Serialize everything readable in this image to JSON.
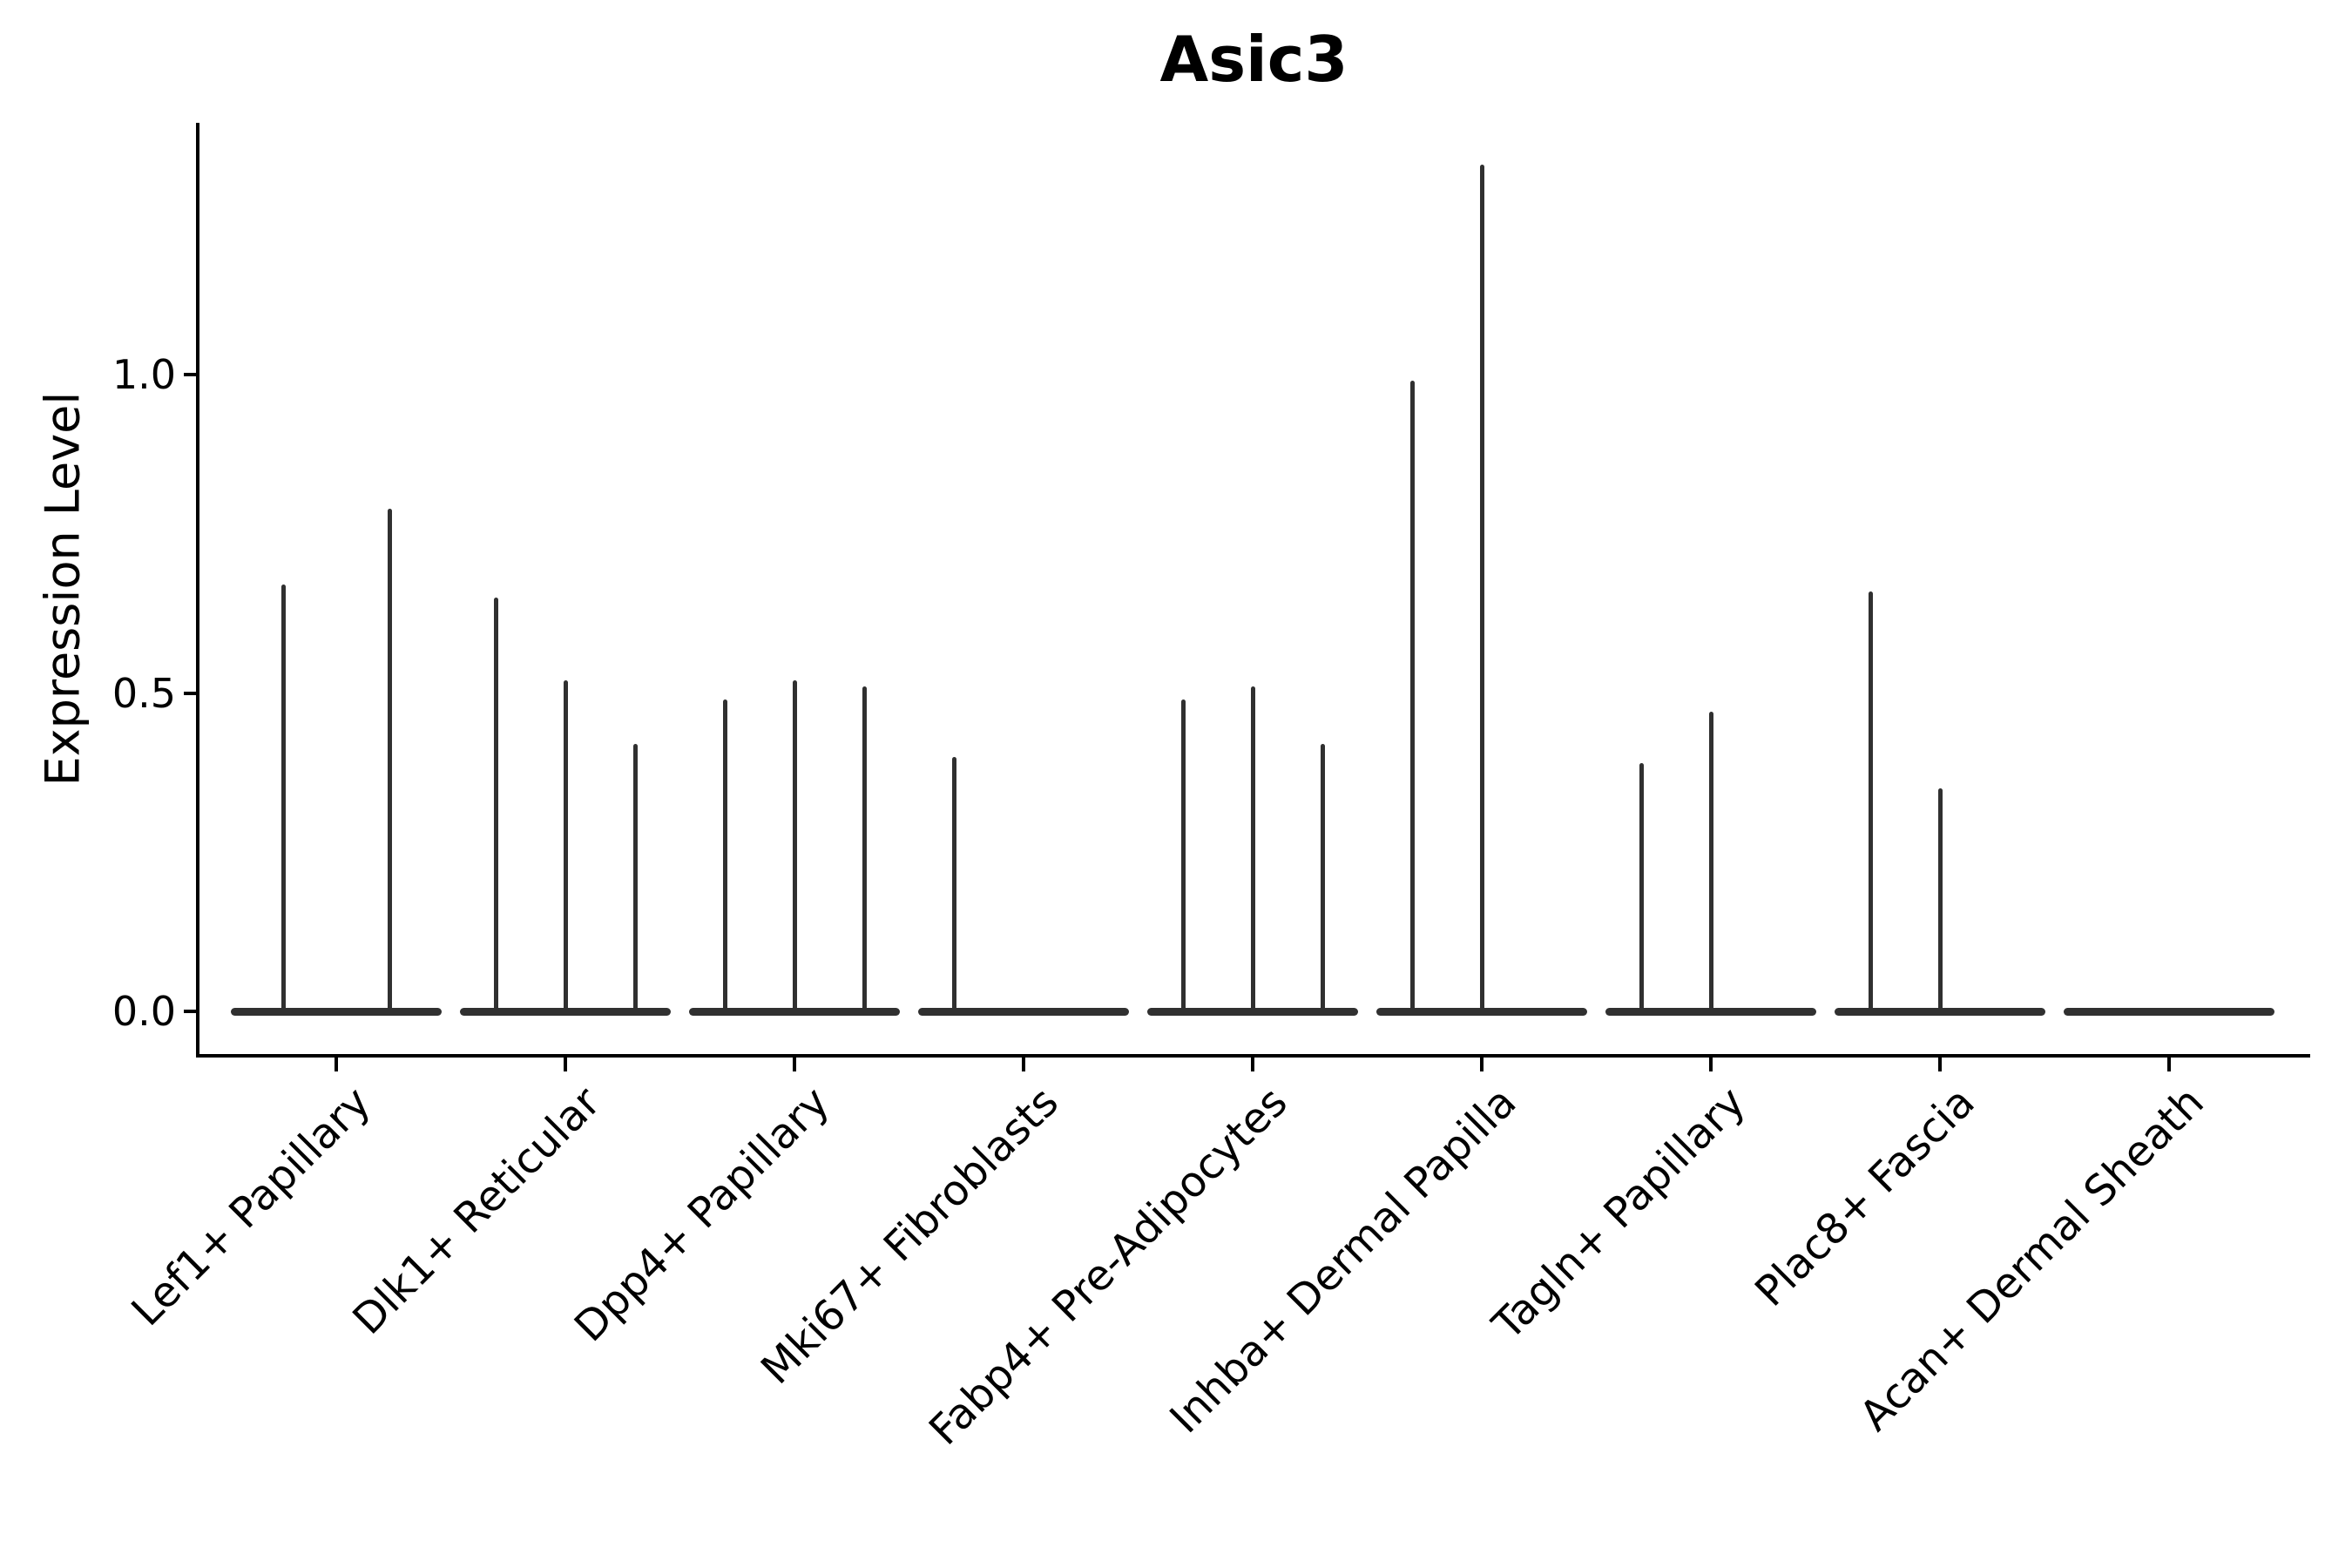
{
  "title": "Asic3",
  "axes": {
    "y_label": "Expression Level",
    "y_ticks": [
      {
        "label": "1.0",
        "value": 1.0
      },
      {
        "label": "0.5",
        "value": 0.5
      },
      {
        "label": "0.0",
        "value": 0.0
      }
    ]
  },
  "chart_data": {
    "type": "violin",
    "title": "Asic3",
    "xlabel": "",
    "ylabel": "Expression Level",
    "yticks": [
      0.0,
      0.5,
      1.0
    ],
    "ylim": [
      -0.07,
      1.4
    ],
    "grid": false,
    "legend_position": "none",
    "colors": {
      "violin": "#303030",
      "axis": "#000000",
      "text": "#000000"
    },
    "categories": [
      "Lef1+ Papillary",
      "Dlk1+ Reticular",
      "Dpp4+ Papillary",
      "Mki67+ Fibroblasts",
      "Fabp4+ Pre-Adipocytes",
      "Inhba+ Dermal Papilla",
      "Tagln+ Papillary",
      "Plac8+ Fascia",
      "Acan+ Dermal Sheath"
    ],
    "violins": [
      {
        "category": "Lef1+ Papillary",
        "spikes": [
          {
            "offset": -61,
            "max": 0.67
          },
          {
            "offset": 61,
            "max": 0.79
          }
        ]
      },
      {
        "category": "Dlk1+ Reticular",
        "spikes": [
          {
            "offset": -80,
            "max": 0.65
          },
          {
            "offset": 0,
            "max": 0.52
          },
          {
            "offset": 80,
            "max": 0.42
          }
        ]
      },
      {
        "category": "Dpp4+ Papillary",
        "spikes": [
          {
            "offset": -80,
            "max": 0.49
          },
          {
            "offset": 0,
            "max": 0.52
          },
          {
            "offset": 80,
            "max": 0.51
          }
        ]
      },
      {
        "category": "Mki67+ Fibroblasts",
        "spikes": [
          {
            "offset": -80,
            "max": 0.4
          }
        ]
      },
      {
        "category": "Fabp4+ Pre-Adipocytes",
        "spikes": [
          {
            "offset": -80,
            "max": 0.49
          },
          {
            "offset": 0,
            "max": 0.51
          },
          {
            "offset": 80,
            "max": 0.42
          }
        ]
      },
      {
        "category": "Inhba+ Dermal Papilla",
        "spikes": [
          {
            "offset": -80,
            "max": 0.99
          },
          {
            "offset": 0,
            "max": 1.33
          }
        ]
      },
      {
        "category": "Tagln+ Papillary",
        "spikes": [
          {
            "offset": -80,
            "max": 0.39
          },
          {
            "offset": 0,
            "max": 0.47
          }
        ]
      },
      {
        "category": "Plac8+ Fascia",
        "spikes": [
          {
            "offset": -80,
            "max": 0.66
          },
          {
            "offset": 0,
            "max": 0.35
          }
        ]
      },
      {
        "category": "Acan+ Dermal Sheath",
        "spikes": []
      }
    ],
    "zero_line_value": 0.0
  }
}
